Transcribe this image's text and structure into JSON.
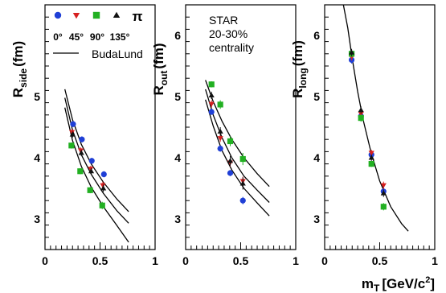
{
  "chart_data": [
    {
      "type": "scatter",
      "panel": "side",
      "ylabel_main": "R",
      "ylabel_sub": "side",
      "ylabel_unit": "(fm)",
      "xlabel": "",
      "xlim": [
        0,
        1
      ],
      "ylim": [
        2.5,
        6.5
      ],
      "x_ticks": [
        "0",
        "0.5",
        "1"
      ],
      "y_ticks": [
        "3",
        "4",
        "5"
      ],
      "grid": false,
      "legend_position": "top-left",
      "legend": {
        "markers": [
          {
            "label": "0°",
            "color": "#1f3fd6",
            "shape": "circle"
          },
          {
            "label": "45°",
            "color": "#d62020",
            "shape": "triangle-down"
          },
          {
            "label": "90°",
            "color": "#22b022",
            "shape": "square"
          },
          {
            "label": "135°",
            "color": "#111111",
            "shape": "triangle-up"
          }
        ],
        "particle": "π",
        "line_label": "BudaLund"
      },
      "series": [
        {
          "name": "0°",
          "color": "#1f3fd6",
          "shape": "circle",
          "x": [
            0.255,
            0.335,
            0.425,
            0.535
          ],
          "y": [
            4.55,
            4.3,
            3.95,
            3.73
          ],
          "err": [
            0.05,
            0.05,
            0.05,
            0.05
          ]
        },
        {
          "name": "45°",
          "color": "#d62020",
          "shape": "triangle-down",
          "x": [
            0.245,
            0.325,
            0.415,
            0.525
          ],
          "y": [
            4.42,
            4.12,
            3.82,
            3.55
          ],
          "err": [
            0.05,
            0.05,
            0.05,
            0.06
          ]
        },
        {
          "name": "90°",
          "color": "#22b022",
          "shape": "square",
          "x": [
            0.24,
            0.32,
            0.41,
            0.52
          ],
          "y": [
            4.2,
            3.78,
            3.47,
            3.22
          ],
          "err": [
            0.05,
            0.05,
            0.05,
            0.06
          ]
        },
        {
          "name": "135°",
          "color": "#111111",
          "shape": "triangle-up",
          "x": [
            0.25,
            0.33,
            0.42,
            0.53
          ],
          "y": [
            4.38,
            4.08,
            3.78,
            3.5
          ],
          "err": [
            0.05,
            0.05,
            0.05,
            0.06
          ]
        }
      ],
      "curves": [
        {
          "x": [
            0.18,
            0.25,
            0.33,
            0.42,
            0.53,
            0.65,
            0.76
          ],
          "y": [
            5.12,
            4.62,
            4.22,
            3.9,
            3.6,
            3.33,
            3.12
          ]
        },
        {
          "x": [
            0.18,
            0.25,
            0.33,
            0.42,
            0.53,
            0.65,
            0.76
          ],
          "y": [
            4.98,
            4.45,
            4.05,
            3.73,
            3.42,
            3.14,
            2.93
          ]
        },
        {
          "x": [
            0.18,
            0.25,
            0.33,
            0.42,
            0.53,
            0.65,
            0.76
          ],
          "y": [
            4.82,
            4.28,
            3.86,
            3.52,
            3.2,
            2.9,
            2.62
          ]
        }
      ]
    },
    {
      "type": "scatter",
      "panel": "out",
      "ylabel_main": "R",
      "ylabel_sub": "out",
      "ylabel_unit": "(fm)",
      "xlabel": "",
      "xlim": [
        0,
        1
      ],
      "ylim": [
        2.5,
        6.5
      ],
      "x_ticks": [
        "0",
        "0.5",
        "1"
      ],
      "y_ticks": [
        "3",
        "4",
        "5",
        "6"
      ],
      "grid": false,
      "notes": [
        "STAR",
        "20-30%",
        "centrality"
      ],
      "series": [
        {
          "name": "0°",
          "color": "#1f3fd6",
          "shape": "circle",
          "x": [
            0.235,
            0.315,
            0.405,
            0.52
          ],
          "y": [
            4.75,
            4.15,
            3.75,
            3.3
          ],
          "err": [
            0.05,
            0.05,
            0.05,
            0.06
          ]
        },
        {
          "name": "45°",
          "color": "#d62020",
          "shape": "triangle-down",
          "x": [
            0.235,
            0.315,
            0.405,
            0.52
          ],
          "y": [
            4.88,
            4.32,
            3.92,
            3.62
          ],
          "err": [
            0.06,
            0.06,
            0.06,
            0.07
          ]
        },
        {
          "name": "90°",
          "color": "#22b022",
          "shape": "square",
          "x": [
            0.235,
            0.315,
            0.405,
            0.52
          ],
          "y": [
            5.2,
            4.87,
            4.27,
            3.98
          ],
          "err": [
            0.05,
            0.07,
            0.08,
            0.1
          ]
        },
        {
          "name": "135°",
          "color": "#111111",
          "shape": "triangle-up",
          "x": [
            0.235,
            0.315,
            0.405,
            0.52
          ],
          "y": [
            5.02,
            4.43,
            3.95,
            3.58
          ],
          "err": [
            0.06,
            0.07,
            0.08,
            0.1
          ]
        }
      ],
      "curves": [
        {
          "x": [
            0.18,
            0.25,
            0.33,
            0.42,
            0.53,
            0.65,
            0.76
          ],
          "y": [
            5.27,
            4.92,
            4.6,
            4.3,
            4.0,
            3.74,
            3.53
          ]
        },
        {
          "x": [
            0.18,
            0.25,
            0.33,
            0.42,
            0.53,
            0.65,
            0.76
          ],
          "y": [
            5.12,
            4.7,
            4.33,
            4.0,
            3.7,
            3.47,
            3.27
          ]
        },
        {
          "x": [
            0.18,
            0.25,
            0.33,
            0.42,
            0.53,
            0.65,
            0.76
          ],
          "y": [
            4.95,
            4.52,
            4.12,
            3.8,
            3.5,
            3.26,
            3.05
          ]
        }
      ]
    },
    {
      "type": "scatter",
      "panel": "long",
      "ylabel_main": "R",
      "ylabel_sub": "long",
      "ylabel_unit": "(fm)",
      "xlabel_main": "m",
      "xlabel_sub": "T",
      "xlabel_unit": "[GeV/c",
      "xlabel_sup": "2",
      "xlabel_end": "]",
      "xlim": [
        0,
        1
      ],
      "ylim": [
        2.5,
        6.5
      ],
      "x_ticks": [
        "0",
        "0.5",
        "1"
      ],
      "y_ticks": [
        "3",
        "4",
        "5",
        "6"
      ],
      "grid": false,
      "series": [
        {
          "name": "0°",
          "color": "#1f3fd6",
          "shape": "circle",
          "x": [
            0.245,
            0.33,
            0.425,
            0.535
          ],
          "y": [
            5.6,
            4.68,
            4.05,
            3.45
          ],
          "err": [
            0.06,
            0.06,
            0.05,
            0.06
          ]
        },
        {
          "name": "45°",
          "color": "#d62020",
          "shape": "triangle-down",
          "x": [
            0.245,
            0.33,
            0.425,
            0.535
          ],
          "y": [
            5.65,
            4.72,
            4.08,
            3.55
          ],
          "err": [
            0.06,
            0.06,
            0.05,
            0.06
          ]
        },
        {
          "name": "90°",
          "color": "#22b022",
          "shape": "square",
          "x": [
            0.245,
            0.33,
            0.425,
            0.535
          ],
          "y": [
            5.7,
            4.65,
            3.9,
            3.2
          ],
          "err": [
            0.06,
            0.06,
            0.05,
            0.06
          ]
        },
        {
          "name": "135°",
          "color": "#111111",
          "shape": "triangle-up",
          "x": [
            0.245,
            0.33,
            0.425,
            0.535
          ],
          "y": [
            5.72,
            4.78,
            4.0,
            3.42
          ],
          "err": [
            0.06,
            0.06,
            0.05,
            0.06
          ]
        }
      ],
      "curves": [
        {
          "x": [
            0.17,
            0.21,
            0.25,
            0.3,
            0.35,
            0.42,
            0.5,
            0.6,
            0.7,
            0.76
          ],
          "y": [
            6.5,
            6.12,
            5.62,
            5.08,
            4.62,
            4.1,
            3.62,
            3.2,
            2.92,
            2.8
          ]
        }
      ]
    }
  ]
}
